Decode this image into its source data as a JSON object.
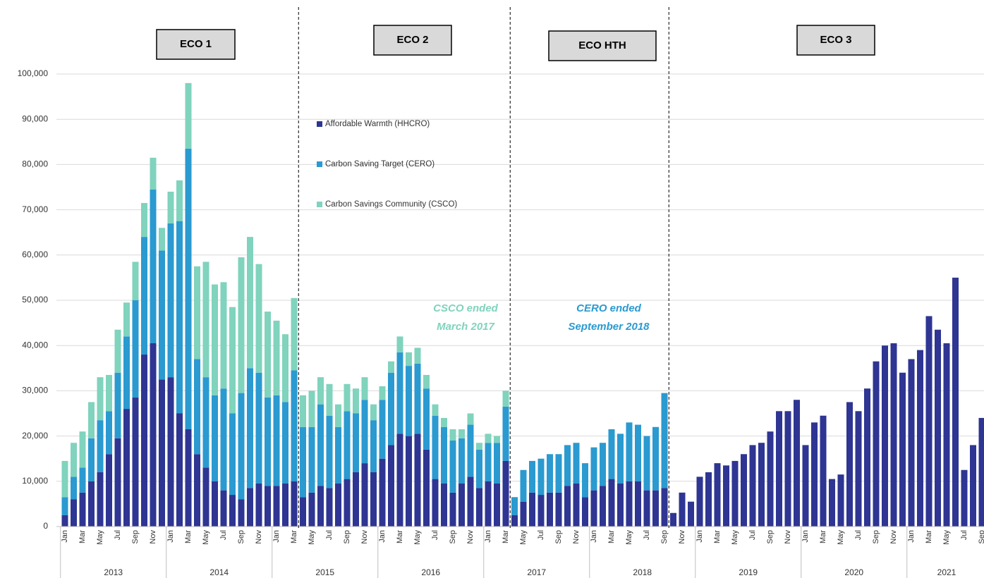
{
  "chart_data": {
    "type": "stacked_bar",
    "ylim": [
      0,
      100000
    ],
    "yticks": [
      0,
      {
        "value": 10000,
        "label": "10,000"
      },
      {
        "value": 20000,
        "label": "20,000"
      },
      {
        "value": 30000,
        "label": "30,000"
      },
      {
        "value": 40000,
        "label": "40,000"
      },
      {
        "value": 50000,
        "label": "50,000"
      },
      {
        "value": 60000,
        "label": "60,000"
      },
      {
        "value": 70000,
        "label": "70,000"
      },
      {
        "value": 80000,
        "label": "80,000"
      },
      {
        "value": 90000,
        "label": "90,000"
      },
      {
        "value": 100000,
        "label": "100,000"
      }
    ],
    "grid": true,
    "categories": [
      "Jan",
      null,
      "Mar",
      null,
      "May",
      null,
      "Jul",
      null,
      "Sep",
      null,
      "Nov",
      null,
      "Jan",
      null,
      "Mar",
      null,
      "May",
      null,
      "Jul",
      null,
      "Sep",
      null,
      "Nov",
      null,
      "Jan",
      null,
      "Mar",
      null,
      "May",
      null,
      "Jul",
      null,
      "Sep",
      null,
      "Nov",
      null,
      "Jan",
      null,
      "Mar",
      null,
      "May",
      null,
      "Jul",
      null,
      "Sep",
      null,
      "Nov",
      null,
      "Jan",
      null,
      "Mar",
      null,
      "May",
      null,
      "Jul",
      null,
      "Sep",
      null,
      "Nov",
      null,
      "Jan",
      null,
      "Mar",
      null,
      "May",
      null,
      "Jul",
      null,
      "Sep",
      null,
      "Nov",
      null,
      "Jan",
      null,
      "Mar",
      null,
      "May",
      null,
      "Jul",
      null,
      "Sep",
      null,
      "Nov",
      null,
      "Jan",
      null,
      "Mar",
      null,
      "May",
      null,
      "Jul",
      null,
      "Sep",
      null,
      "Nov",
      null,
      "Jan",
      null,
      "Mar",
      null,
      "May",
      null,
      "Jul",
      null,
      "Sep"
    ],
    "years": [
      "2013",
      "2014",
      "2015",
      "2016",
      "2017",
      "2018",
      "2019",
      "2020",
      "2021"
    ],
    "series": [
      {
        "name": "Affordable Warmth (HHCRO)",
        "color": "#2e3592",
        "values": [
          2500,
          6000,
          7500,
          10000,
          12000,
          16000,
          19500,
          26000,
          28500,
          38000,
          40500,
          32500,
          33000,
          25000,
          21500,
          16000,
          13000,
          10000,
          8000,
          7000,
          6000,
          8500,
          9500,
          9000,
          9000,
          9500,
          10000,
          6500,
          7500,
          9000,
          8500,
          9500,
          10500,
          12000,
          14000,
          12000,
          15000,
          18000,
          20500,
          20000,
          20500,
          17000,
          10500,
          9500,
          7500,
          9500,
          11000,
          8500,
          10000,
          9500,
          14500,
          2500,
          5500,
          7500,
          7000,
          7500,
          7500,
          9000,
          9500,
          6500,
          8000,
          9000,
          10500,
          9500,
          10000,
          10000,
          8000,
          8000,
          8500,
          3000,
          7500,
          5500,
          11000,
          12000,
          14000,
          13500,
          14500,
          16000,
          18000,
          18500,
          21000,
          25500,
          25500,
          28000,
          18000,
          23000,
          24500,
          10500,
          11500,
          27500,
          25500,
          30500,
          36500,
          40000,
          40500,
          34000,
          37000,
          39000,
          46500,
          43500,
          40500,
          55000,
          12500,
          18000,
          24000
        ]
      },
      {
        "name": "Carbon Saving Target (CERO)",
        "color": "#2a9ad0",
        "values": [
          4000,
          5000,
          5500,
          9500,
          11500,
          9500,
          14500,
          16000,
          21500,
          26000,
          34000,
          28500,
          34000,
          42500,
          62000,
          21000,
          20000,
          19000,
          22500,
          18000,
          23500,
          26500,
          24500,
          19500,
          20000,
          18000,
          24500,
          15500,
          14500,
          18000,
          16000,
          12500,
          15000,
          13000,
          14000,
          11500,
          13000,
          16000,
          18000,
          15500,
          15500,
          13500,
          14000,
          12500,
          11500,
          10000,
          11500,
          8500,
          8500,
          9000,
          12000,
          4000,
          7000,
          7000,
          8000,
          8500,
          8500,
          9000,
          9000,
          7500,
          9500,
          9500,
          11000,
          11000,
          13000,
          12500,
          12000,
          14000,
          21000,
          null,
          null,
          null,
          null,
          null,
          null,
          null,
          null,
          null,
          null,
          null,
          null,
          null,
          null,
          null,
          null,
          null,
          null,
          null,
          null,
          null,
          null,
          null,
          null,
          null,
          null,
          null,
          null,
          null,
          null,
          null,
          null,
          null,
          null,
          null,
          null
        ]
      },
      {
        "name": "Carbon Savings Community  (CSCO)",
        "color": "#80d3bd",
        "values": [
          8000,
          7500,
          8000,
          8000,
          9500,
          8000,
          9500,
          7500,
          8500,
          7500,
          7000,
          5000,
          7000,
          9000,
          14500,
          20500,
          25500,
          24500,
          23500,
          23500,
          30000,
          29000,
          24000,
          19000,
          16500,
          15000,
          16000,
          7000,
          8000,
          6000,
          7000,
          5000,
          6000,
          5500,
          5000,
          3500,
          3000,
          2500,
          3500,
          3000,
          3500,
          3000,
          2500,
          2000,
          2500,
          2000,
          2500,
          1500,
          2000,
          1500,
          3500,
          null,
          null,
          null,
          null,
          null,
          null,
          null,
          null,
          null,
          null,
          null,
          null,
          null,
          null,
          null,
          null,
          null,
          null,
          null,
          null,
          null,
          null,
          null,
          null,
          null,
          null,
          null,
          null,
          null,
          null,
          null,
          null,
          null,
          null,
          null,
          null,
          null,
          null,
          null,
          null,
          null,
          null,
          null,
          null,
          null,
          null,
          null,
          null,
          null,
          null,
          null,
          null,
          null,
          null
        ]
      }
    ],
    "phases": [
      "ECO 1",
      "ECO 2",
      "ECO HTH",
      "ECO 3"
    ],
    "annotations": [
      {
        "lines": [
          "CSCO ended",
          "March 2017"
        ],
        "color": "#80d3bd"
      },
      {
        "lines": [
          "CERO ended",
          "September 2018"
        ],
        "color": "#2a9ad0"
      }
    ]
  }
}
